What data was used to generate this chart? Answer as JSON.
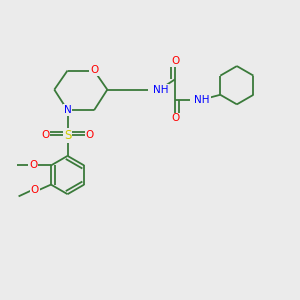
{
  "background_color": "#ebebeb",
  "bond_color": "#3a7a3a",
  "atom_colors": {
    "O": "#ff0000",
    "N": "#0000ff",
    "S": "#cccc00",
    "H": "#5a8a8a",
    "C": "#3a7a3a"
  },
  "fig_width": 3.0,
  "fig_height": 3.0,
  "dpi": 100,
  "lw": 1.3,
  "fontsize": 7.5,
  "xlim": [
    0,
    10
  ],
  "ylim": [
    0,
    10
  ]
}
